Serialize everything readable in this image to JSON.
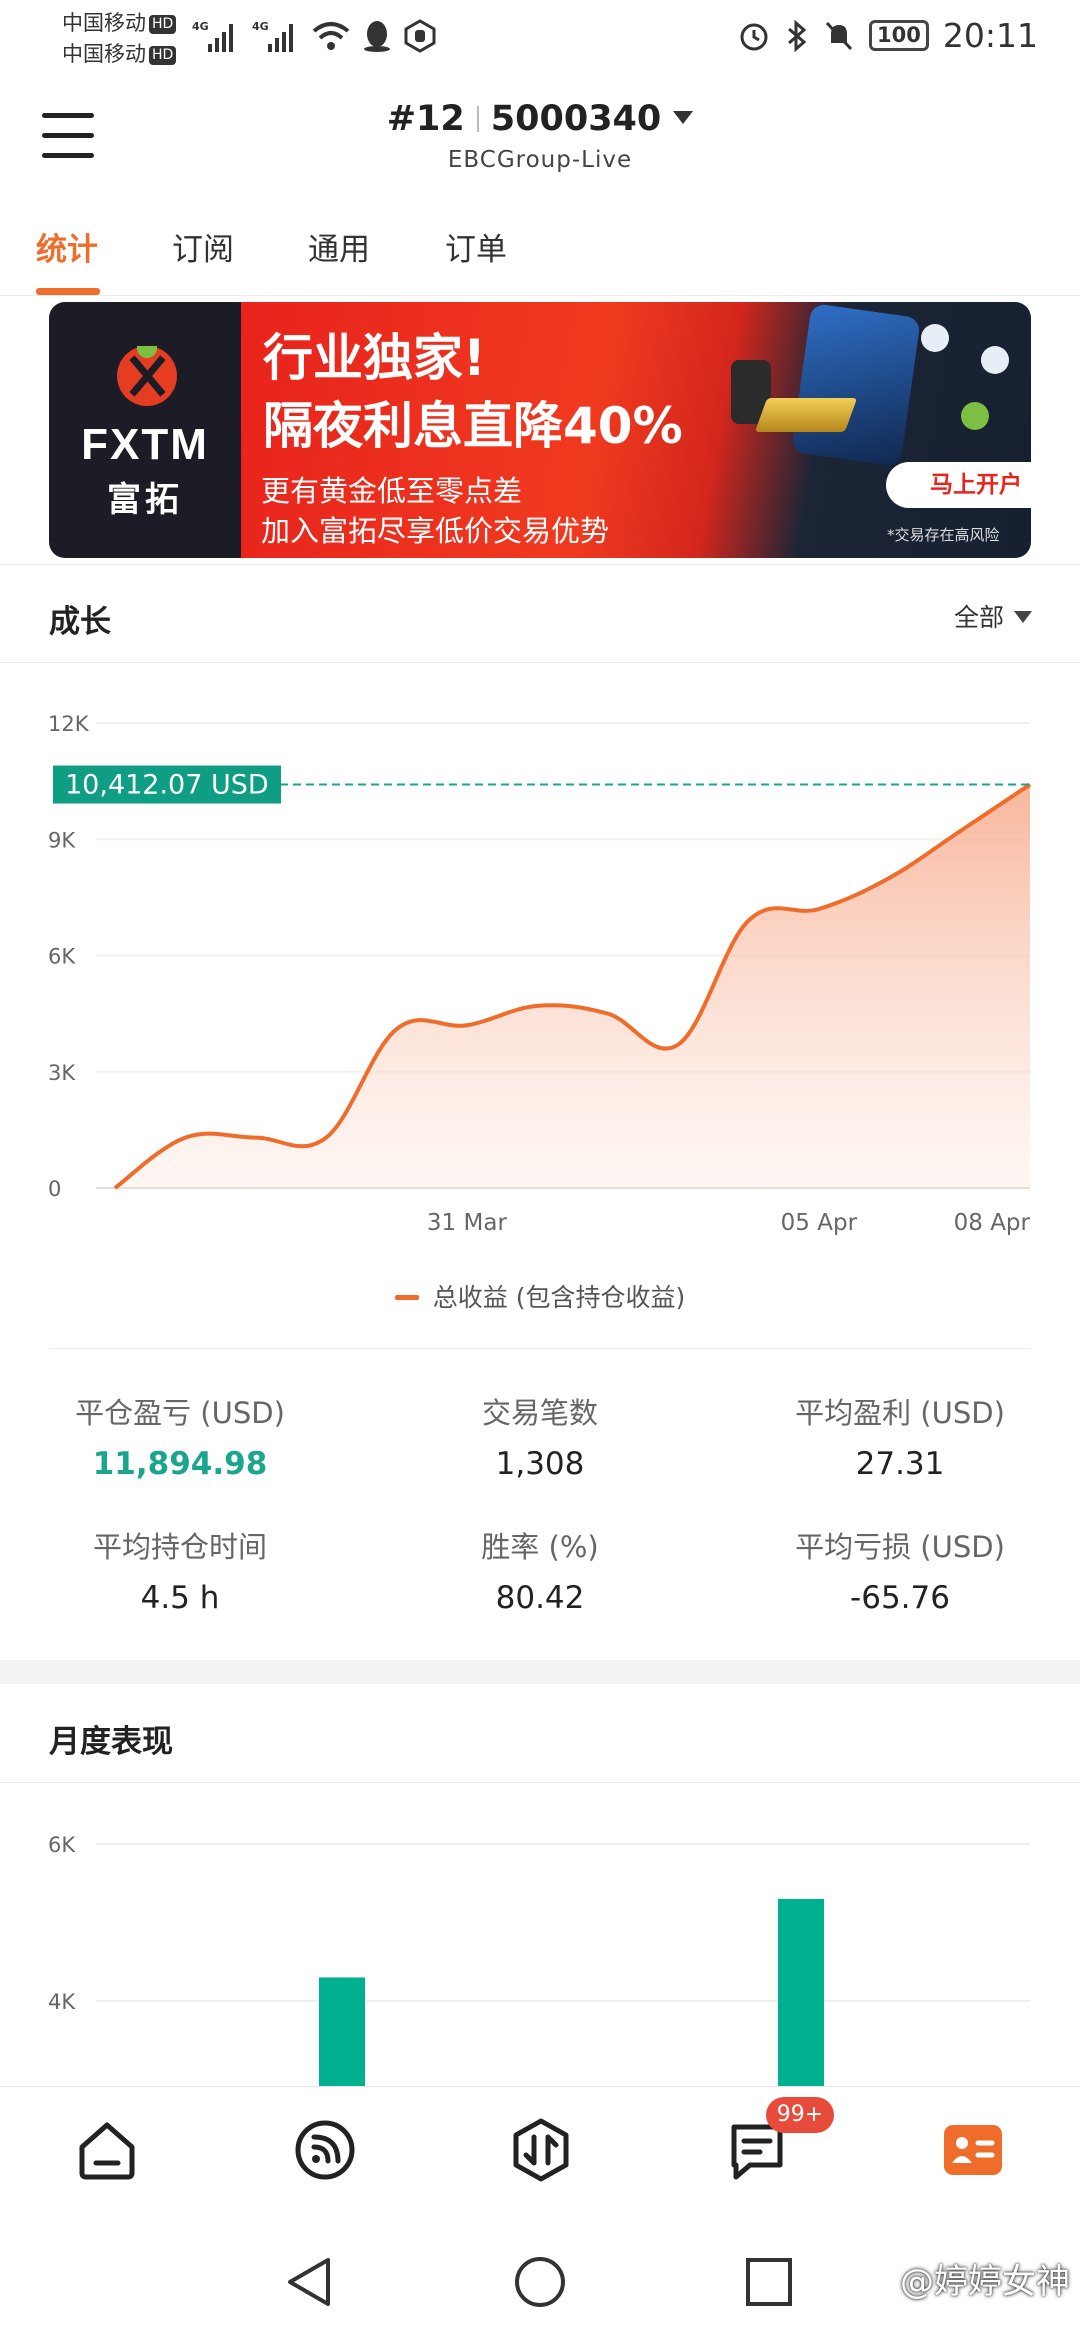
{
  "status_bar": {
    "carrier_1": "中国移动",
    "carrier_2": "中国移动",
    "hd_label": "HD",
    "signal_label": "4G",
    "battery": "100",
    "time": "20:11"
  },
  "header": {
    "rank": "#12",
    "account_number": "5000340",
    "server": "EBCGroup-Live"
  },
  "tabs": [
    {
      "label": "统计",
      "active": true
    },
    {
      "label": "订阅",
      "active": false
    },
    {
      "label": "通用",
      "active": false
    },
    {
      "label": "订单",
      "active": false
    }
  ],
  "banner": {
    "brand_en": "FXTM",
    "brand_cn": "富拓",
    "headline_1": "行业独家!",
    "headline_2": "隔夜利息直降40%",
    "sub_1": "更有黄金低至零点差",
    "sub_2": "加入富拓尽享低价交易优势",
    "cta": "马上开户",
    "risk": "*交易存在高风险"
  },
  "growth": {
    "title": "成长",
    "filter": "全部",
    "current_label": "10,412.07 USD",
    "legend": "总收益 (包含持仓收益)"
  },
  "chart_data": [
    {
      "type": "area",
      "y_ticks": [
        "12K",
        "9K",
        "6K",
        "3K",
        "0"
      ],
      "ylim": [
        0,
        12000
      ],
      "x_ticks": [
        "31 Mar",
        "05 Apr",
        "08 Apr"
      ],
      "reference_line": 10412.07,
      "series": [
        {
          "name": "总收益 (包含持仓收益)",
          "points": [
            {
              "x": "~25 Mar",
              "y": 0
            },
            {
              "x": "~26 Mar",
              "y": 1300
            },
            {
              "x": "~28 Mar",
              "y": 1300
            },
            {
              "x": "~29 Mar",
              "y": 1300
            },
            {
              "x": "~30 Mar",
              "y": 4100
            },
            {
              "x": "31 Mar",
              "y": 4200
            },
            {
              "x": "~01 Apr",
              "y": 4700
            },
            {
              "x": "~02 Apr",
              "y": 4500
            },
            {
              "x": "~03 Apr",
              "y": 3700
            },
            {
              "x": "~04 Apr",
              "y": 6900
            },
            {
              "x": "05 Apr",
              "y": 7200
            },
            {
              "x": "~06 Apr",
              "y": 8000
            },
            {
              "x": "~07 Apr",
              "y": 9200
            },
            {
              "x": "08 Apr",
              "y": 10412.07
            }
          ]
        }
      ],
      "colors": {
        "line": "#ef6c2b",
        "fill": "#fbd3c2",
        "reference": "#1aa58d"
      }
    },
    {
      "type": "bar",
      "title": "月度表现",
      "y_ticks": [
        "6K",
        "4K"
      ],
      "series": [
        {
          "name": "",
          "values": [
            4300,
            5300
          ]
        }
      ],
      "colors": {
        "bar": "#00b08e"
      }
    }
  ],
  "stats": [
    {
      "label": "平仓盈亏 (USD)",
      "value": "11,894.98",
      "color": "#1aa58d"
    },
    {
      "label": "交易笔数",
      "value": "1,308"
    },
    {
      "label": "平均盈利 (USD)",
      "value": "27.31"
    },
    {
      "label": "平均持仓时间",
      "value": "4.5 h"
    },
    {
      "label": "胜率 (%)",
      "value": "80.42"
    },
    {
      "label": "平均亏损 (USD)",
      "value": "-65.76"
    }
  ],
  "monthly": {
    "title": "月度表现"
  },
  "bottom_nav": {
    "items": [
      "home-icon",
      "feed-icon",
      "trade-icon",
      "message-icon",
      "profile-icon"
    ],
    "badge": "99+",
    "accent": "#ef6c2b"
  },
  "watermark": "@婷婷女神"
}
